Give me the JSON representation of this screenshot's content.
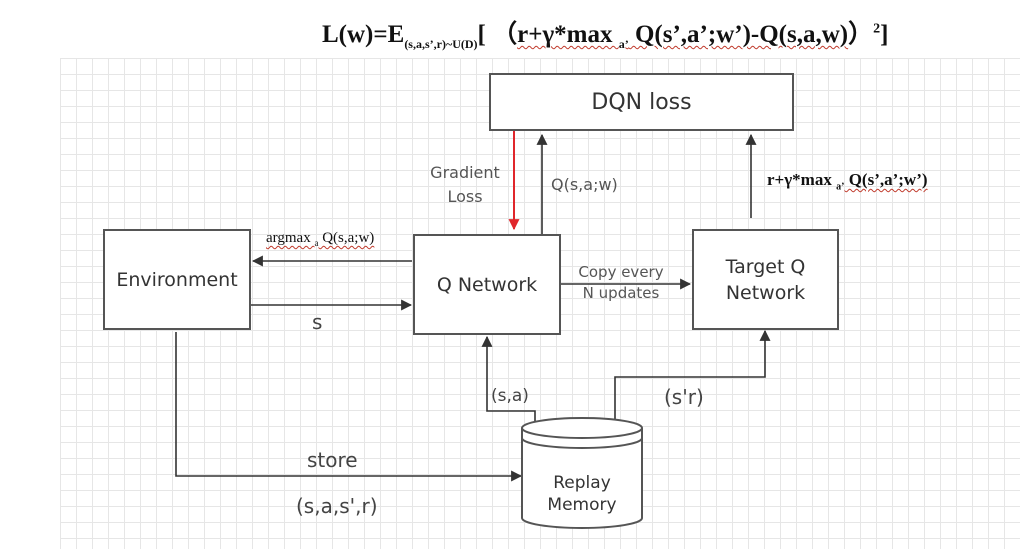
{
  "formula": {
    "prefix": "L(w)=E",
    "sub": "(s,a,s’,r)~U(D)",
    "bracket_open": "[ （",
    "body1": "r+γ*max ",
    "body_sub": "a’",
    "body2": " Q(s’,a’;w’)-Q(s,a,w)",
    "paren_close": "）",
    "sup": "2",
    "bracket_close": "]"
  },
  "nodes": {
    "dqn_loss": "DQN loss",
    "environment": "Environment",
    "q_network": "Q Network",
    "target_q_network": [
      "Target Q",
      "Network"
    ],
    "replay_memory": [
      "Replay",
      "Memory"
    ]
  },
  "edges": {
    "gradient_loss": [
      "Gradient",
      "Loss"
    ],
    "q_value": "Q(s,a;w)",
    "target": {
      "prefix": "r+γ*max ",
      "sub": "a’",
      "suffix": " Q(s’,a’;w’)"
    },
    "argmax": {
      "prefix": "argmax ",
      "sub": "a",
      "suffix": " Q(s,a;w)"
    },
    "s": "s",
    "copy": [
      "Copy  every",
      "N updates"
    ],
    "sa": "(s,a)",
    "sr": "(s'r)",
    "store": "store",
    "transition": "(s,a,s',r)"
  },
  "colors": {
    "gradient_arrow": "#e0262b",
    "arrow": "#333333",
    "box_border": "#555555",
    "grid": "#e6e6e6"
  }
}
